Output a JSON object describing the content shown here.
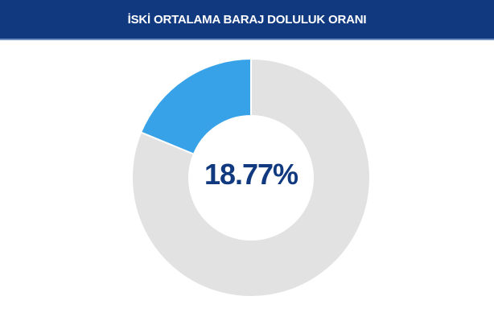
{
  "header": {
    "title": "İSKİ ORTALAMA BARAJ DOLULUK ORANI"
  },
  "chart_data": {
    "type": "pie",
    "variant": "donut",
    "title": "İSKİ ORTALAMA BARAJ DOLULUK ORANI",
    "center_label": "18.77%",
    "slices": [
      {
        "value": 18.77,
        "color": "#38a2e8"
      },
      {
        "value": 81.23,
        "color": "#e2e2e2"
      }
    ],
    "start": "top",
    "direction": "counterclockwise"
  }
}
